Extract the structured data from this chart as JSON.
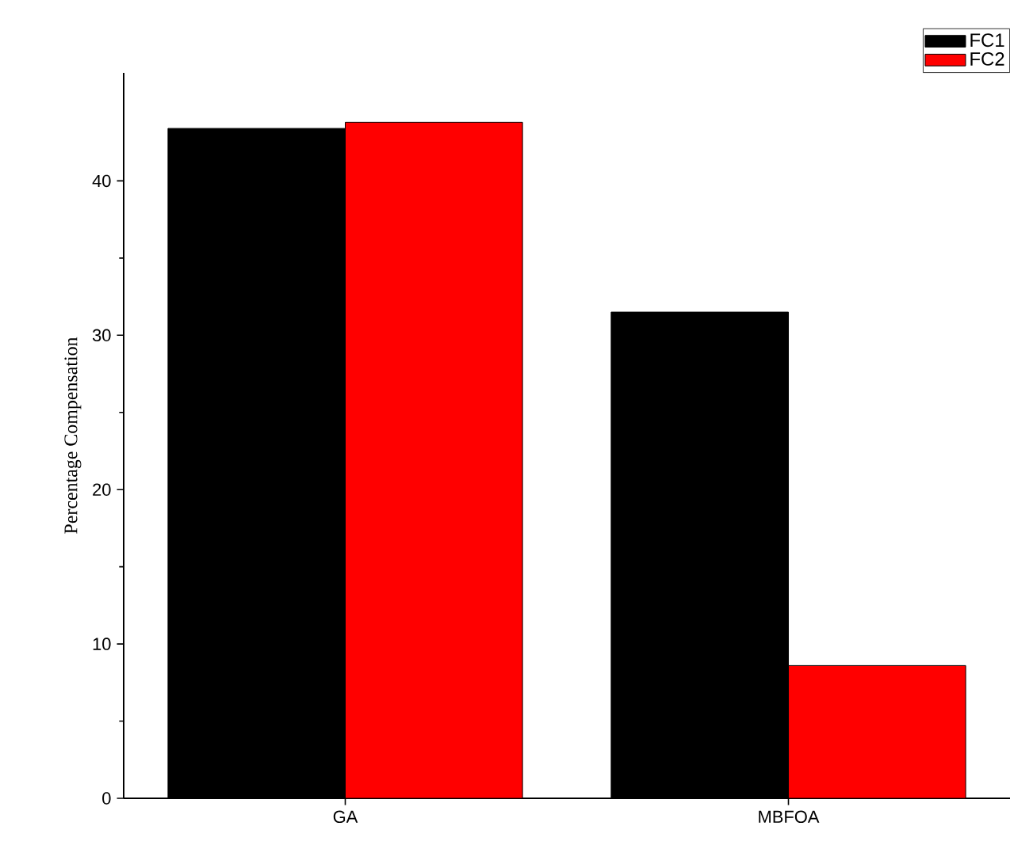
{
  "chart_data": {
    "type": "bar",
    "ylabel": "Percentage Compensation",
    "categories": [
      "GA",
      "MBFOA"
    ],
    "series": [
      {
        "name": "FC1",
        "color": "#000000",
        "values": [
          43.4,
          31.5
        ]
      },
      {
        "name": "FC2",
        "color": "#ff0000",
        "values": [
          43.8,
          8.6
        ]
      }
    ],
    "ylim": [
      0,
      47
    ],
    "yticks": [
      0,
      10,
      20,
      30,
      40
    ],
    "legend": "top right",
    "grid": false
  }
}
